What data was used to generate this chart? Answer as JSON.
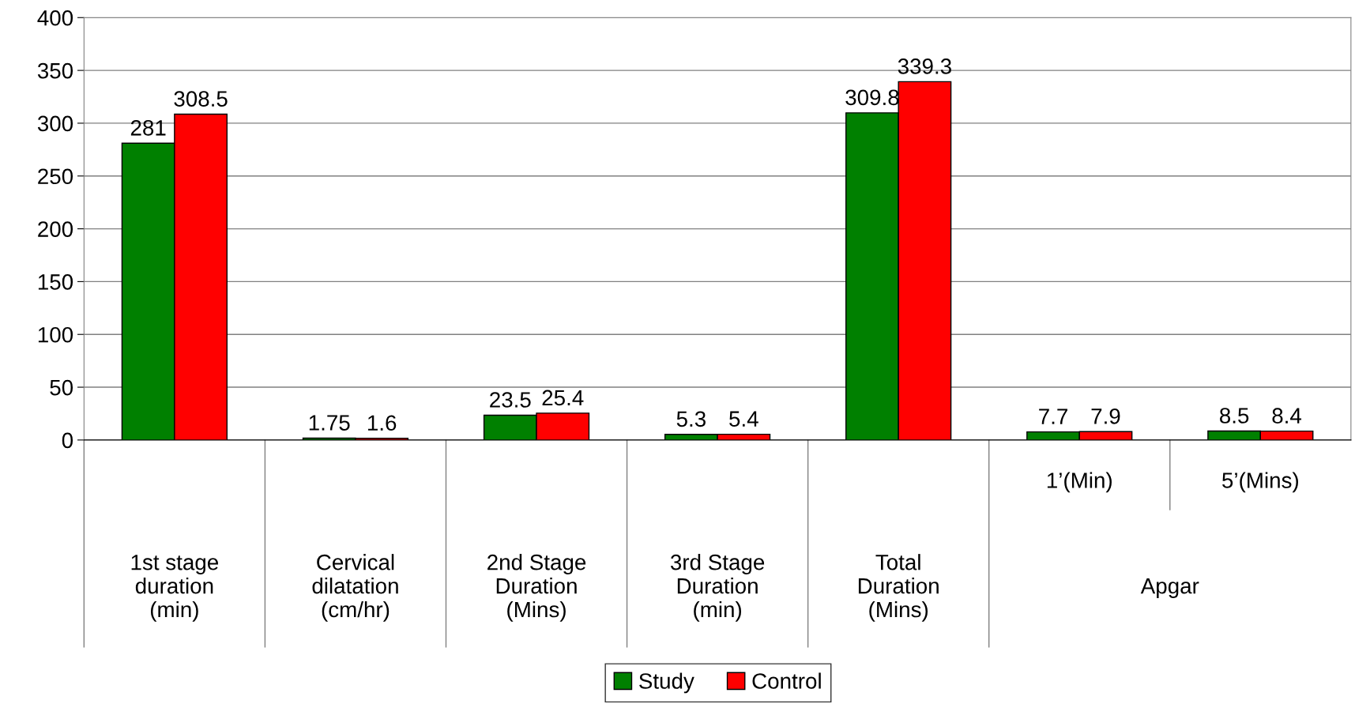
{
  "chart_data": {
    "type": "bar",
    "categories": [
      "1st stage\nduration\n(min)",
      "Cervical\ndilatation\n(cm/hr)",
      "2nd Stage\nDuration\n(Mins)",
      "3rd Stage\nDuration\n(min)",
      "Total\nDuration\n(Mins)",
      "1’(Min)",
      "5’(Mins)"
    ],
    "series": [
      {
        "name": "Study",
        "color": "#008000",
        "values": [
          281,
          1.75,
          23.5,
          5.3,
          309.8,
          7.7,
          8.5
        ]
      },
      {
        "name": "Control",
        "color": "#ff0000",
        "values": [
          308.5,
          1.6,
          25.4,
          5.4,
          339.3,
          7.9,
          8.4
        ]
      }
    ],
    "annotations": [
      "Apgar"
    ],
    "ylim": [
      0,
      400
    ],
    "yticks": [
      0,
      50,
      100,
      150,
      200,
      250,
      300,
      350,
      400
    ],
    "grid": "y",
    "legend": "bottom",
    "data_labels": true
  }
}
